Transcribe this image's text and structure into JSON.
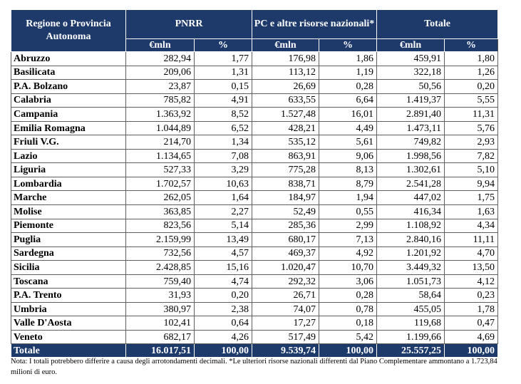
{
  "header": {
    "region_label": "Regione o Provincia Autonoma",
    "pnrr": "PNRR",
    "pc": "PC e altre risorse nazionali*",
    "totale": "Totale",
    "unit_mln": "€mln",
    "unit_pct": "%"
  },
  "rows": [
    {
      "region": "Abruzzo",
      "pnrr_mln": "282,94",
      "pnrr_pct": "1,77",
      "pc_mln": "176,98",
      "pc_pct": "1,86",
      "tot_mln": "459,91",
      "tot_pct": "1,80"
    },
    {
      "region": "Basilicata",
      "pnrr_mln": "209,06",
      "pnrr_pct": "1,31",
      "pc_mln": "113,12",
      "pc_pct": "1,19",
      "tot_mln": "322,18",
      "tot_pct": "1,26"
    },
    {
      "region": "P.A. Bolzano",
      "pnrr_mln": "23,87",
      "pnrr_pct": "0,15",
      "pc_mln": "26,69",
      "pc_pct": "0,28",
      "tot_mln": "50,56",
      "tot_pct": "0,20"
    },
    {
      "region": "Calabria",
      "pnrr_mln": "785,82",
      "pnrr_pct": "4,91",
      "pc_mln": "633,55",
      "pc_pct": "6,64",
      "tot_mln": "1.419,37",
      "tot_pct": "5,55"
    },
    {
      "region": "Campania",
      "pnrr_mln": "1.363,92",
      "pnrr_pct": "8,52",
      "pc_mln": "1.527,48",
      "pc_pct": "16,01",
      "tot_mln": "2.891,40",
      "tot_pct": "11,31"
    },
    {
      "region": "Emilia Romagna",
      "pnrr_mln": "1.044,89",
      "pnrr_pct": "6,52",
      "pc_mln": "428,21",
      "pc_pct": "4,49",
      "tot_mln": "1.473,11",
      "tot_pct": "5,76"
    },
    {
      "region": "Friuli V.G.",
      "pnrr_mln": "214,70",
      "pnrr_pct": "1,34",
      "pc_mln": "535,12",
      "pc_pct": "5,61",
      "tot_mln": "749,82",
      "tot_pct": "2,93"
    },
    {
      "region": "Lazio",
      "pnrr_mln": "1.134,65",
      "pnrr_pct": "7,08",
      "pc_mln": "863,91",
      "pc_pct": "9,06",
      "tot_mln": "1.998,56",
      "tot_pct": "7,82"
    },
    {
      "region": "Liguria",
      "pnrr_mln": "527,33",
      "pnrr_pct": "3,29",
      "pc_mln": "775,28",
      "pc_pct": "8,13",
      "tot_mln": "1.302,61",
      "tot_pct": "5,10"
    },
    {
      "region": "Lombardia",
      "pnrr_mln": "1.702,57",
      "pnrr_pct": "10,63",
      "pc_mln": "838,71",
      "pc_pct": "8,79",
      "tot_mln": "2.541,28",
      "tot_pct": "9,94"
    },
    {
      "region": "Marche",
      "pnrr_mln": "262,05",
      "pnrr_pct": "1,64",
      "pc_mln": "184,97",
      "pc_pct": "1,94",
      "tot_mln": "447,02",
      "tot_pct": "1,75"
    },
    {
      "region": "Molise",
      "pnrr_mln": "363,85",
      "pnrr_pct": "2,27",
      "pc_mln": "52,49",
      "pc_pct": "0,55",
      "tot_mln": "416,34",
      "tot_pct": "1,63"
    },
    {
      "region": "Piemonte",
      "pnrr_mln": "823,56",
      "pnrr_pct": "5,14",
      "pc_mln": "285,36",
      "pc_pct": "2,99",
      "tot_mln": "1.108,92",
      "tot_pct": "4,34"
    },
    {
      "region": "Puglia",
      "pnrr_mln": "2.159,99",
      "pnrr_pct": "13,49",
      "pc_mln": "680,17",
      "pc_pct": "7,13",
      "tot_mln": "2.840,16",
      "tot_pct": "11,11"
    },
    {
      "region": "Sardegna",
      "pnrr_mln": "732,56",
      "pnrr_pct": "4,57",
      "pc_mln": "469,37",
      "pc_pct": "4,92",
      "tot_mln": "1.201,92",
      "tot_pct": "4,70"
    },
    {
      "region": "Sicilia",
      "pnrr_mln": "2.428,85",
      "pnrr_pct": "15,16",
      "pc_mln": "1.020,47",
      "pc_pct": "10,70",
      "tot_mln": "3.449,32",
      "tot_pct": "13,50"
    },
    {
      "region": "Toscana",
      "pnrr_mln": "759,40",
      "pnrr_pct": "4,74",
      "pc_mln": "292,32",
      "pc_pct": "3,06",
      "tot_mln": "1.051,73",
      "tot_pct": "4,12"
    },
    {
      "region": "P.A. Trento",
      "pnrr_mln": "31,93",
      "pnrr_pct": "0,20",
      "pc_mln": "26,71",
      "pc_pct": "0,28",
      "tot_mln": "58,64",
      "tot_pct": "0,23"
    },
    {
      "region": "Umbria",
      "pnrr_mln": "380,97",
      "pnrr_pct": "2,38",
      "pc_mln": "74,07",
      "pc_pct": "0,78",
      "tot_mln": "455,05",
      "tot_pct": "1,78"
    },
    {
      "region": "Valle D'Aosta",
      "pnrr_mln": "102,41",
      "pnrr_pct": "0,64",
      "pc_mln": "17,27",
      "pc_pct": "0,18",
      "tot_mln": "119,68",
      "tot_pct": "0,47"
    },
    {
      "region": "Veneto",
      "pnrr_mln": "682,17",
      "pnrr_pct": "4,26",
      "pc_mln": "517,49",
      "pc_pct": "5,42",
      "tot_mln": "1.199,66",
      "tot_pct": "4,69"
    }
  ],
  "total": {
    "region": "Totale",
    "pnrr_mln": "16.017,51",
    "pnrr_pct": "100,00",
    "pc_mln": "9.539,74",
    "pc_pct": "100,00",
    "tot_mln": "25.557,25",
    "tot_pct": "100,00"
  },
  "note": "Nota: I totali potrebbero differire a causa degli arrotondamenti decimali. *Le ulteriori risorse nazionali differenti dal Piano Complementare ammontano a 1.723,84 milioni di euro.",
  "colors": {
    "header_bg": "#1e3a6b",
    "header_text": "#ffffff"
  }
}
